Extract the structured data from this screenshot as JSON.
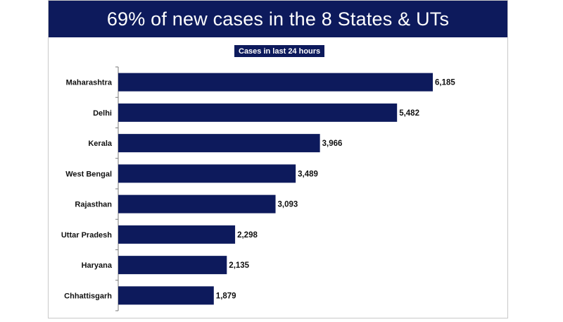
{
  "chart_data": {
    "type": "bar",
    "orientation": "horizontal",
    "title": "69% of new cases in the 8 States & UTs",
    "subtitle": "Cases in last 24 hours",
    "categories": [
      "Maharashtra",
      "Delhi",
      "Kerala",
      "West Bengal",
      "Rajasthan",
      "Uttar Pradesh",
      "Haryana",
      "Chhattisgarh"
    ],
    "values": [
      6185,
      5482,
      3966,
      3489,
      3093,
      2298,
      2135,
      1879
    ],
    "value_labels": [
      "6,185",
      "5,482",
      "3,966",
      "3,489",
      "3,093",
      "2,298",
      "2,135",
      "1,879"
    ],
    "xlim": [
      0,
      6185
    ],
    "grid": false,
    "legend": "none",
    "bar_color": "#0d1a5c"
  }
}
